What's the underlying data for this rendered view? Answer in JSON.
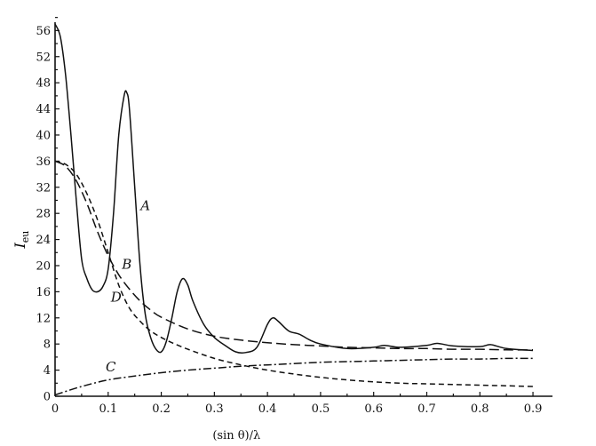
{
  "chart_data": {
    "type": "line",
    "xlabel": "(sin θ)/λ",
    "ylabel": "I",
    "ylabel_sub": "eu",
    "xlim": [
      0,
      0.92
    ],
    "ylim": [
      0,
      57
    ],
    "xticks": [
      "0",
      "0.1",
      "0.2",
      "0.3",
      "0.4",
      "0.5",
      "0.6",
      "0.7",
      "0.8",
      "0.9"
    ],
    "yticks": [
      "0",
      "4",
      "8",
      "12",
      "16",
      "20",
      "24",
      "28",
      "32",
      "36",
      "40",
      "44",
      "48",
      "52",
      "56"
    ],
    "grid": false,
    "series": [
      {
        "name": "A",
        "style": "solid",
        "x": [
          0.0,
          0.01,
          0.02,
          0.03,
          0.04,
          0.05,
          0.06,
          0.07,
          0.08,
          0.09,
          0.1,
          0.11,
          0.12,
          0.13,
          0.135,
          0.14,
          0.15,
          0.16,
          0.17,
          0.18,
          0.19,
          0.2,
          0.21,
          0.22,
          0.23,
          0.24,
          0.25,
          0.26,
          0.28,
          0.3,
          0.32,
          0.34,
          0.36,
          0.38,
          0.4,
          0.41,
          0.42,
          0.44,
          0.46,
          0.48,
          0.5,
          0.55,
          0.6,
          0.62,
          0.65,
          0.7,
          0.72,
          0.75,
          0.8,
          0.82,
          0.85,
          0.9
        ],
        "y": [
          57,
          55,
          49,
          40,
          30,
          21,
          18,
          16.3,
          16,
          16.8,
          19.5,
          28,
          40,
          46,
          46.5,
          44,
          32,
          20,
          12.5,
          9,
          7.2,
          6.8,
          8.5,
          12,
          16,
          18,
          17,
          14.5,
          11,
          9,
          7.8,
          6.8,
          6.7,
          7.5,
          11,
          12,
          11.5,
          10,
          9.5,
          8.6,
          8,
          7.3,
          7.5,
          7.8,
          7.5,
          7.8,
          8.1,
          7.7,
          7.6,
          7.9,
          7.3,
          7
        ]
      },
      {
        "name": "B",
        "style": "long-dash",
        "x": [
          0.0,
          0.02,
          0.04,
          0.06,
          0.08,
          0.1,
          0.12,
          0.14,
          0.16,
          0.18,
          0.2,
          0.25,
          0.3,
          0.35,
          0.4,
          0.45,
          0.5,
          0.55,
          0.6,
          0.65,
          0.7,
          0.75,
          0.8,
          0.85,
          0.9
        ],
        "y": [
          36,
          35.2,
          33,
          29.5,
          25.2,
          21.5,
          18.6,
          16.4,
          14.6,
          13.2,
          12.1,
          10.3,
          9.2,
          8.6,
          8.2,
          7.9,
          7.7,
          7.5,
          7.4,
          7.3,
          7.3,
          7.2,
          7.2,
          7.1,
          7.1
        ]
      },
      {
        "name": "C",
        "style": "dash-dot",
        "x": [
          0.0,
          0.05,
          0.1,
          0.15,
          0.2,
          0.25,
          0.3,
          0.35,
          0.4,
          0.45,
          0.5,
          0.55,
          0.6,
          0.65,
          0.7,
          0.75,
          0.8,
          0.85,
          0.9
        ],
        "y": [
          0.2,
          1.5,
          2.5,
          3.1,
          3.6,
          4.0,
          4.3,
          4.6,
          4.8,
          5.0,
          5.2,
          5.3,
          5.4,
          5.5,
          5.6,
          5.7,
          5.7,
          5.8,
          5.8
        ]
      },
      {
        "name": "D",
        "style": "short-dash",
        "x": [
          0.0,
          0.02,
          0.04,
          0.06,
          0.08,
          0.1,
          0.12,
          0.14,
          0.16,
          0.18,
          0.2,
          0.22,
          0.25,
          0.3,
          0.35,
          0.4,
          0.45,
          0.5,
          0.55,
          0.6,
          0.65,
          0.7,
          0.75,
          0.8,
          0.85,
          0.9
        ],
        "y": [
          36,
          35.5,
          34,
          31,
          27,
          22,
          17,
          13.5,
          11.5,
          10,
          9,
          8.2,
          7.2,
          5.8,
          4.8,
          4.0,
          3.4,
          2.9,
          2.5,
          2.2,
          2.0,
          1.9,
          1.8,
          1.7,
          1.6,
          1.5
        ]
      }
    ],
    "annotations": [
      {
        "text": "A",
        "x": 0.17,
        "y": 28.5
      },
      {
        "text": "B",
        "x": 0.135,
        "y": 19.5
      },
      {
        "text": "D",
        "x": 0.115,
        "y": 14.5
      },
      {
        "text": "C",
        "x": 0.105,
        "y": 3.8
      }
    ]
  }
}
